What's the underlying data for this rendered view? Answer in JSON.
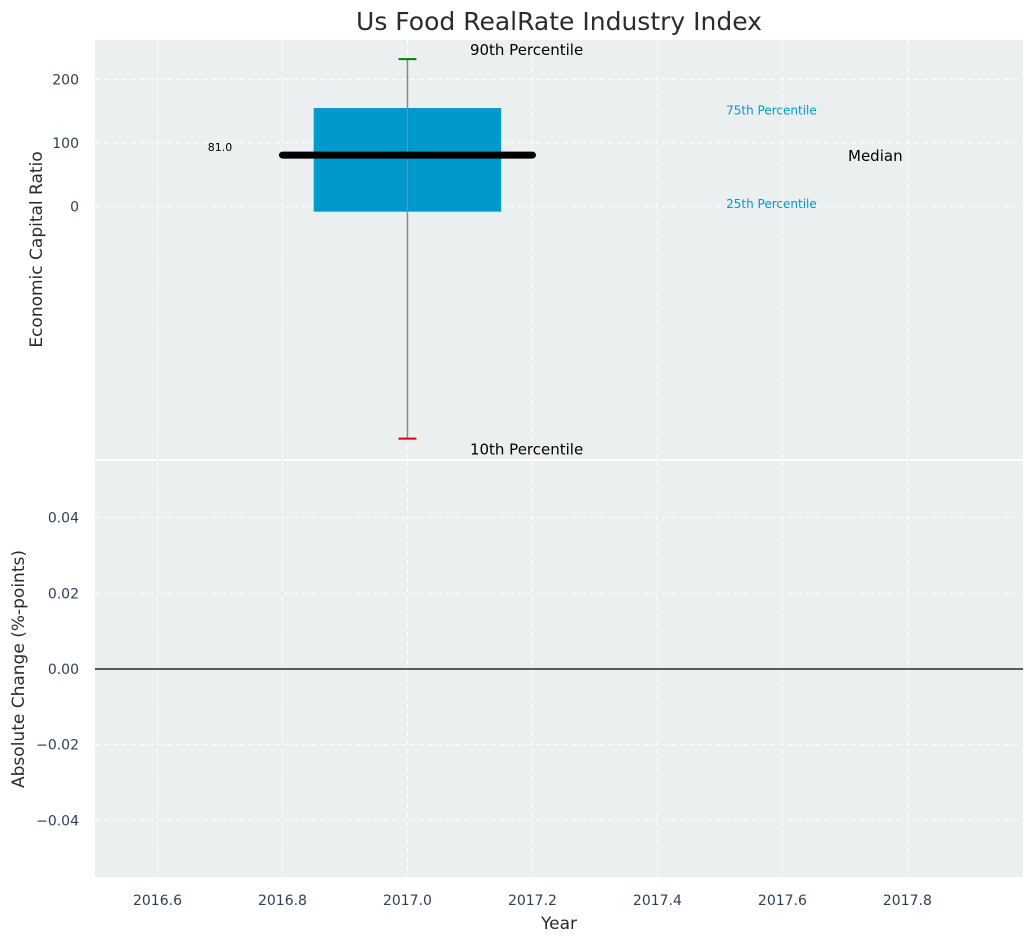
{
  "chart_data": [
    {
      "type": "box",
      "title": "Us Food RealRate Industry Index",
      "ylabel": "Economic Capital Ratio",
      "x_range": [
        2016.5,
        1017.985
      ],
      "y_range": [
        -397,
        262
      ],
      "yticks": [
        0,
        100,
        200
      ],
      "grid": true,
      "box": {
        "x": 2017.0,
        "p10": -365,
        "p25": -8,
        "median": 81,
        "p75": 155,
        "p90": 232,
        "color": "#0099cc",
        "median_label": "81.0"
      },
      "annotations": {
        "p90": "90th Percentile",
        "p75": "75th Percentile",
        "median": "Median",
        "p25": "25th Percentile",
        "p10": "10th Percentile"
      },
      "colors": {
        "box": "#0099cc",
        "whisker": "#888888",
        "p90_cap": "#008000",
        "p10_cap": "#dd0000",
        "median": "#000000",
        "annotation_small": "#0099cc",
        "annotation": "#000000"
      }
    },
    {
      "type": "bar",
      "ylabel": "Absolute Change (%-points)",
      "xlabel": "Year",
      "x_range": [
        2016.5,
        2017.985
      ],
      "y_range": [
        -0.055,
        0.055
      ],
      "xticks": [
        2016.6,
        2016.8,
        2017.0,
        2017.2,
        2017.4,
        2017.6,
        2017.8
      ],
      "yticks": [
        -0.04,
        -0.02,
        0.0,
        0.02,
        0.04
      ],
      "values": [],
      "grid": true,
      "zero_line": true
    }
  ]
}
